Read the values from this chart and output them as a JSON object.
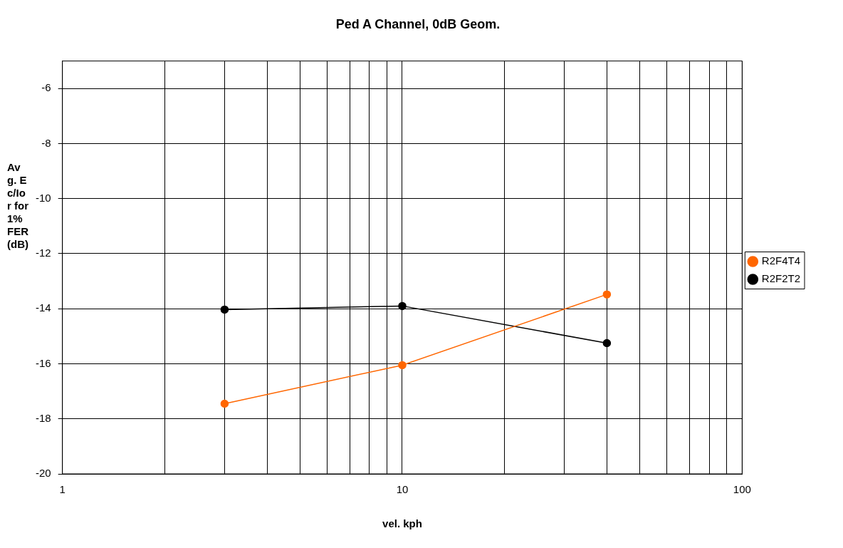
{
  "chart_data": {
    "type": "line",
    "title": "Ped A Channel, 0dB Geom.",
    "xlabel": "vel. kph",
    "ylabel": "Avg. Ec/Ior for 1% FER (dB)",
    "x": [
      3,
      10,
      40
    ],
    "series": [
      {
        "name": "R2F4T4",
        "color": "#ff6600",
        "values": [
          -17.45,
          -16.05,
          -13.48
        ]
      },
      {
        "name": "R2F2T2",
        "color": "#000000",
        "values": [
          -14.03,
          -13.9,
          -15.25
        ]
      }
    ],
    "log": "x",
    "xlim": [
      1,
      100
    ],
    "xticks": [
      1,
      {
        "value": 2,
        "label": null
      },
      {
        "value": 3,
        "label": null
      },
      {
        "value": 4,
        "label": null
      },
      {
        "value": 5,
        "label": null
      },
      {
        "value": 6,
        "label": null
      },
      {
        "value": 7,
        "label": null
      },
      {
        "value": 8,
        "label": null
      },
      {
        "value": 9,
        "label": null
      },
      10,
      {
        "value": 20,
        "label": null
      },
      {
        "value": 30,
        "label": null
      },
      {
        "value": 40,
        "label": null
      },
      {
        "value": 50,
        "label": null
      },
      {
        "value": 60,
        "label": null
      },
      {
        "value": 70,
        "label": null
      },
      {
        "value": 80,
        "label": null
      },
      {
        "value": 90,
        "label": null
      },
      100
    ],
    "ylim": [
      -20,
      -5
    ],
    "yticks": [
      -20,
      -18,
      -16,
      -14,
      -12,
      -10,
      -8,
      -6
    ],
    "grid": true,
    "legend": "right",
    "marker": "circle",
    "line_style": "solid"
  }
}
